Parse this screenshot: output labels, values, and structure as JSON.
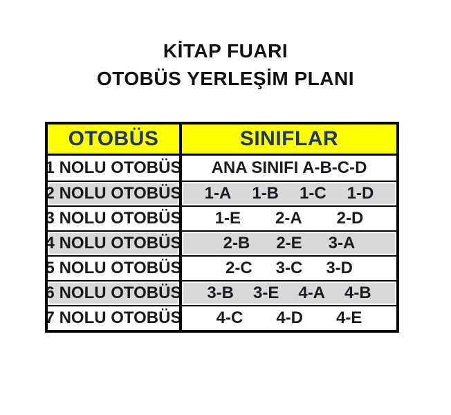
{
  "title": {
    "line1": "KİTAP FUARI",
    "line2": "OTOBÜS YERLEŞİM PLANI"
  },
  "table": {
    "headers": {
      "bus": "OTOBÜS",
      "classes": "SINIFLAR"
    },
    "rows": [
      {
        "bus": "1 NOLU OTOBÜS",
        "classes": [
          "ANA SINIFI A-B-C-D"
        ]
      },
      {
        "bus": "2 NOLU OTOBÜS",
        "classes": [
          "1-A",
          "1-B",
          "1-C",
          "1-D"
        ]
      },
      {
        "bus": "3 NOLU OTOBÜS",
        "classes": [
          "1-E",
          "2-A",
          "2-D"
        ]
      },
      {
        "bus": "4 NOLU OTOBÜS",
        "classes": [
          "2-B",
          "2-E",
          "3-A"
        ]
      },
      {
        "bus": "5 NOLU OTOBÜS",
        "classes": [
          "2-C",
          "3-C",
          "3-D"
        ]
      },
      {
        "bus": "6 NOLU OTOBÜS",
        "classes": [
          "3-B",
          "3-E",
          "4-A",
          "4-B"
        ]
      },
      {
        "bus": "7 NOLU OTOBÜS",
        "classes": [
          "4-C",
          "4-D",
          "4-E"
        ]
      }
    ],
    "colors": {
      "header_bg": "#FFFF00",
      "header_text": "#1F3864",
      "row_alt_bg": "#D9D9D9",
      "border": "#000000",
      "text": "#1A1A1A"
    }
  }
}
